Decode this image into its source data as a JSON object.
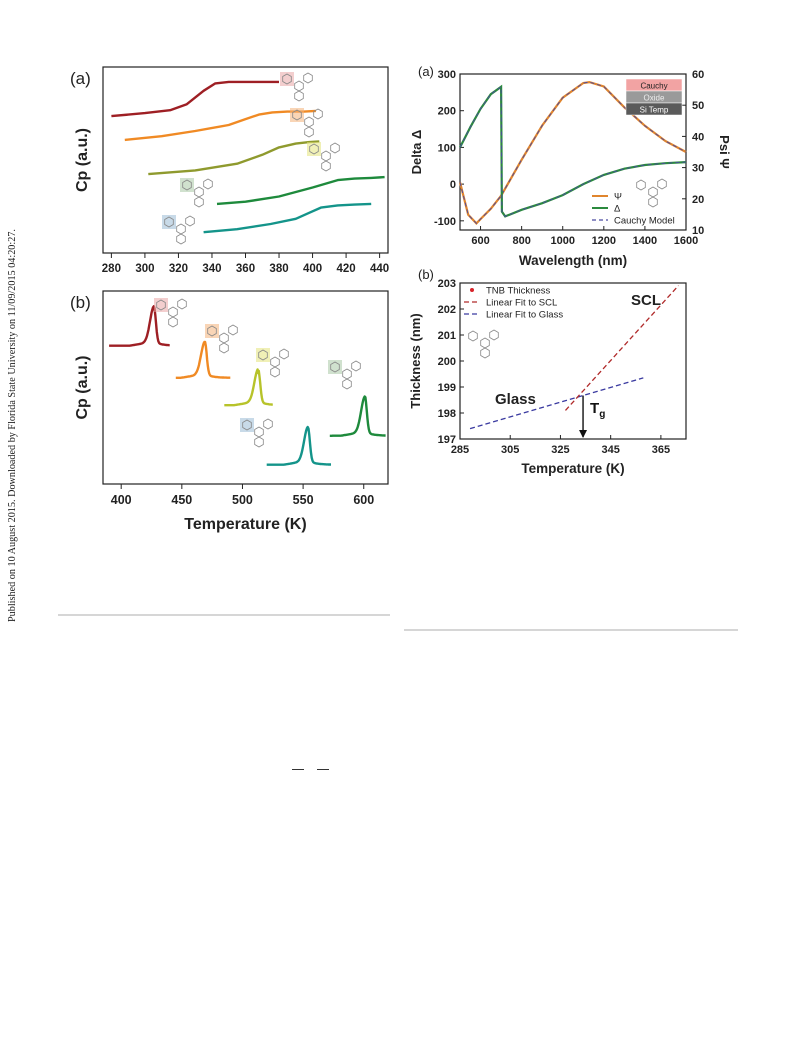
{
  "side_note": "Published on 10 August 2015. Downloaded by Florida State University on 11/09/2015 04:20:27.",
  "colors": {
    "darkred": "#9e1f24",
    "orange": "#f08a24",
    "olive": "#8f9a2e",
    "yellowgreen": "#b7c32a",
    "green": "#1e8a3c",
    "teal": "#14948a",
    "psi": "#e0852d",
    "delta": "#2b8a3e",
    "model": "#4a4aa0",
    "scl_fit": "#b02a2a",
    "glass_fit": "#3a3aa0",
    "glass_points": "#1f6fc0",
    "mid_points": "#e7609e",
    "scl_points": "#d8232a"
  },
  "chart_data": [
    {
      "id": "left-a",
      "panel_label": "(a)",
      "type": "line",
      "ylabel": "Cp (a.u.)",
      "xlabel": "",
      "xlim": [
        275,
        445
      ],
      "xticks": [
        280,
        300,
        320,
        340,
        360,
        380,
        400,
        420,
        440
      ],
      "series": [
        {
          "color_key": "darkred",
          "x": [
            280,
            300,
            315,
            325,
            335,
            342,
            350,
            360,
            370,
            380
          ],
          "y": [
            9.2,
            9.4,
            9.6,
            10.0,
            10.9,
            11.4,
            11.5,
            11.5,
            11.5,
            11.5
          ]
        },
        {
          "color_key": "orange",
          "x": [
            288,
            310,
            330,
            350,
            360,
            368,
            376,
            385,
            395,
            402
          ],
          "y": [
            7.6,
            7.85,
            8.2,
            8.6,
            9.0,
            9.3,
            9.45,
            9.5,
            9.5,
            9.55
          ]
        },
        {
          "color_key": "olive",
          "x": [
            302,
            330,
            355,
            370,
            380,
            390,
            398,
            404
          ],
          "y": [
            5.3,
            5.55,
            6.0,
            6.6,
            7.1,
            7.35,
            7.45,
            7.5
          ]
        },
        {
          "color_key": "green",
          "x": [
            343,
            360,
            380,
            400,
            415,
            425,
            435,
            443
          ],
          "y": [
            3.3,
            3.45,
            3.8,
            4.4,
            4.9,
            5.0,
            5.05,
            5.1
          ]
        },
        {
          "color_key": "teal",
          "x": [
            335,
            355,
            375,
            390,
            398,
            405,
            415,
            425,
            435
          ],
          "y": [
            1.4,
            1.6,
            1.95,
            2.3,
            2.7,
            3.05,
            3.2,
            3.25,
            3.3
          ]
        }
      ]
    },
    {
      "id": "left-b",
      "panel_label": "(b)",
      "type": "line",
      "ylabel": "Cp (a.u.)",
      "xlabel": "Temperature (K)",
      "xlim": [
        385,
        620
      ],
      "xticks": [
        400,
        450,
        500,
        550,
        600
      ],
      "peaks": [
        {
          "color_key": "darkred",
          "start": 390,
          "end": 440,
          "peak": 427,
          "base": 8.6,
          "height": 2.2
        },
        {
          "color_key": "orange",
          "start": 445,
          "end": 490,
          "peak": 469,
          "base": 6.6,
          "height": 2.0
        },
        {
          "color_key": "yellowgreen",
          "start": 485,
          "end": 525,
          "peak": 513,
          "base": 4.9,
          "height": 2.0
        },
        {
          "color_key": "green",
          "start": 572,
          "end": 618,
          "peak": 601,
          "base": 3.0,
          "height": 2.2
        },
        {
          "color_key": "teal",
          "start": 520,
          "end": 573,
          "peak": 554,
          "base": 1.2,
          "height": 2.1
        }
      ]
    },
    {
      "id": "right-a",
      "panel_label": "(a)",
      "type": "line",
      "xlabel": "Wavelength (nm)",
      "ylabel": "Delta Δ",
      "y2label": "Psi Ψ",
      "xlim": [
        500,
        1600
      ],
      "ylim": [
        -125,
        300
      ],
      "y2lim": [
        10,
        60
      ],
      "xticks": [
        600,
        800,
        1000,
        1200,
        1400,
        1600
      ],
      "yticks": [
        -100,
        0,
        100,
        200,
        300
      ],
      "y2ticks": [
        10,
        20,
        30,
        40,
        50,
        60
      ],
      "layer_stack": [
        "Cauchy",
        "Oxide",
        "Si Temp"
      ],
      "legend": [
        "Ψ",
        "Δ",
        "Cauchy Model"
      ],
      "series": [
        {
          "name": "Ψ",
          "axis": "y2",
          "color_key": "psi",
          "x": [
            500,
            540,
            580,
            600,
            650,
            700,
            800,
            900,
            1000,
            1100,
            1130,
            1200,
            1300,
            1400,
            1500,
            1600
          ],
          "y": [
            25.3,
            14.9,
            12.1,
            13.5,
            16.8,
            21.0,
            32.5,
            43.5,
            52.4,
            57.1,
            57.4,
            56.0,
            49.3,
            43.4,
            38.5,
            35.0
          ]
        },
        {
          "name": "Δ",
          "axis": "y1",
          "color_key": "delta",
          "x": [
            500,
            550,
            600,
            650,
            700,
            704,
            720,
            800,
            900,
            1000,
            1100,
            1200,
            1300,
            1400,
            1500,
            1600
          ],
          "y": [
            100,
            155,
            205,
            245,
            265,
            -75,
            -88,
            -70,
            -52,
            -30,
            0,
            25,
            42,
            52,
            57,
            60
          ]
        }
      ]
    },
    {
      "id": "right-b",
      "panel_label": "(b)",
      "type": "scatter",
      "xlabel": "Temperature (K)",
      "ylabel": "Thickness (nm)",
      "xlim": [
        285,
        375
      ],
      "ylim": [
        197,
        203
      ],
      "xticks": [
        285,
        305,
        325,
        345,
        365
      ],
      "yticks": [
        197,
        198,
        199,
        200,
        201,
        202,
        203
      ],
      "legend": [
        "TNB Thickness",
        "Linear Fit to SCL",
        "Linear Fit to Glass"
      ],
      "annotations": [
        "SCL",
        "Glass"
      ],
      "tg_symbol": "T",
      "tg_subscript": "g",
      "tg": 334,
      "glass_range": [
        290,
        322
      ],
      "scl_range": [
        322,
        372
      ],
      "glass_fit": {
        "x": [
          289,
          358
        ],
        "y": [
          197.4,
          199.35
        ]
      },
      "scl_fit": {
        "x": [
          327,
          372
        ],
        "y": [
          198.1,
          202.9
        ]
      }
    }
  ]
}
